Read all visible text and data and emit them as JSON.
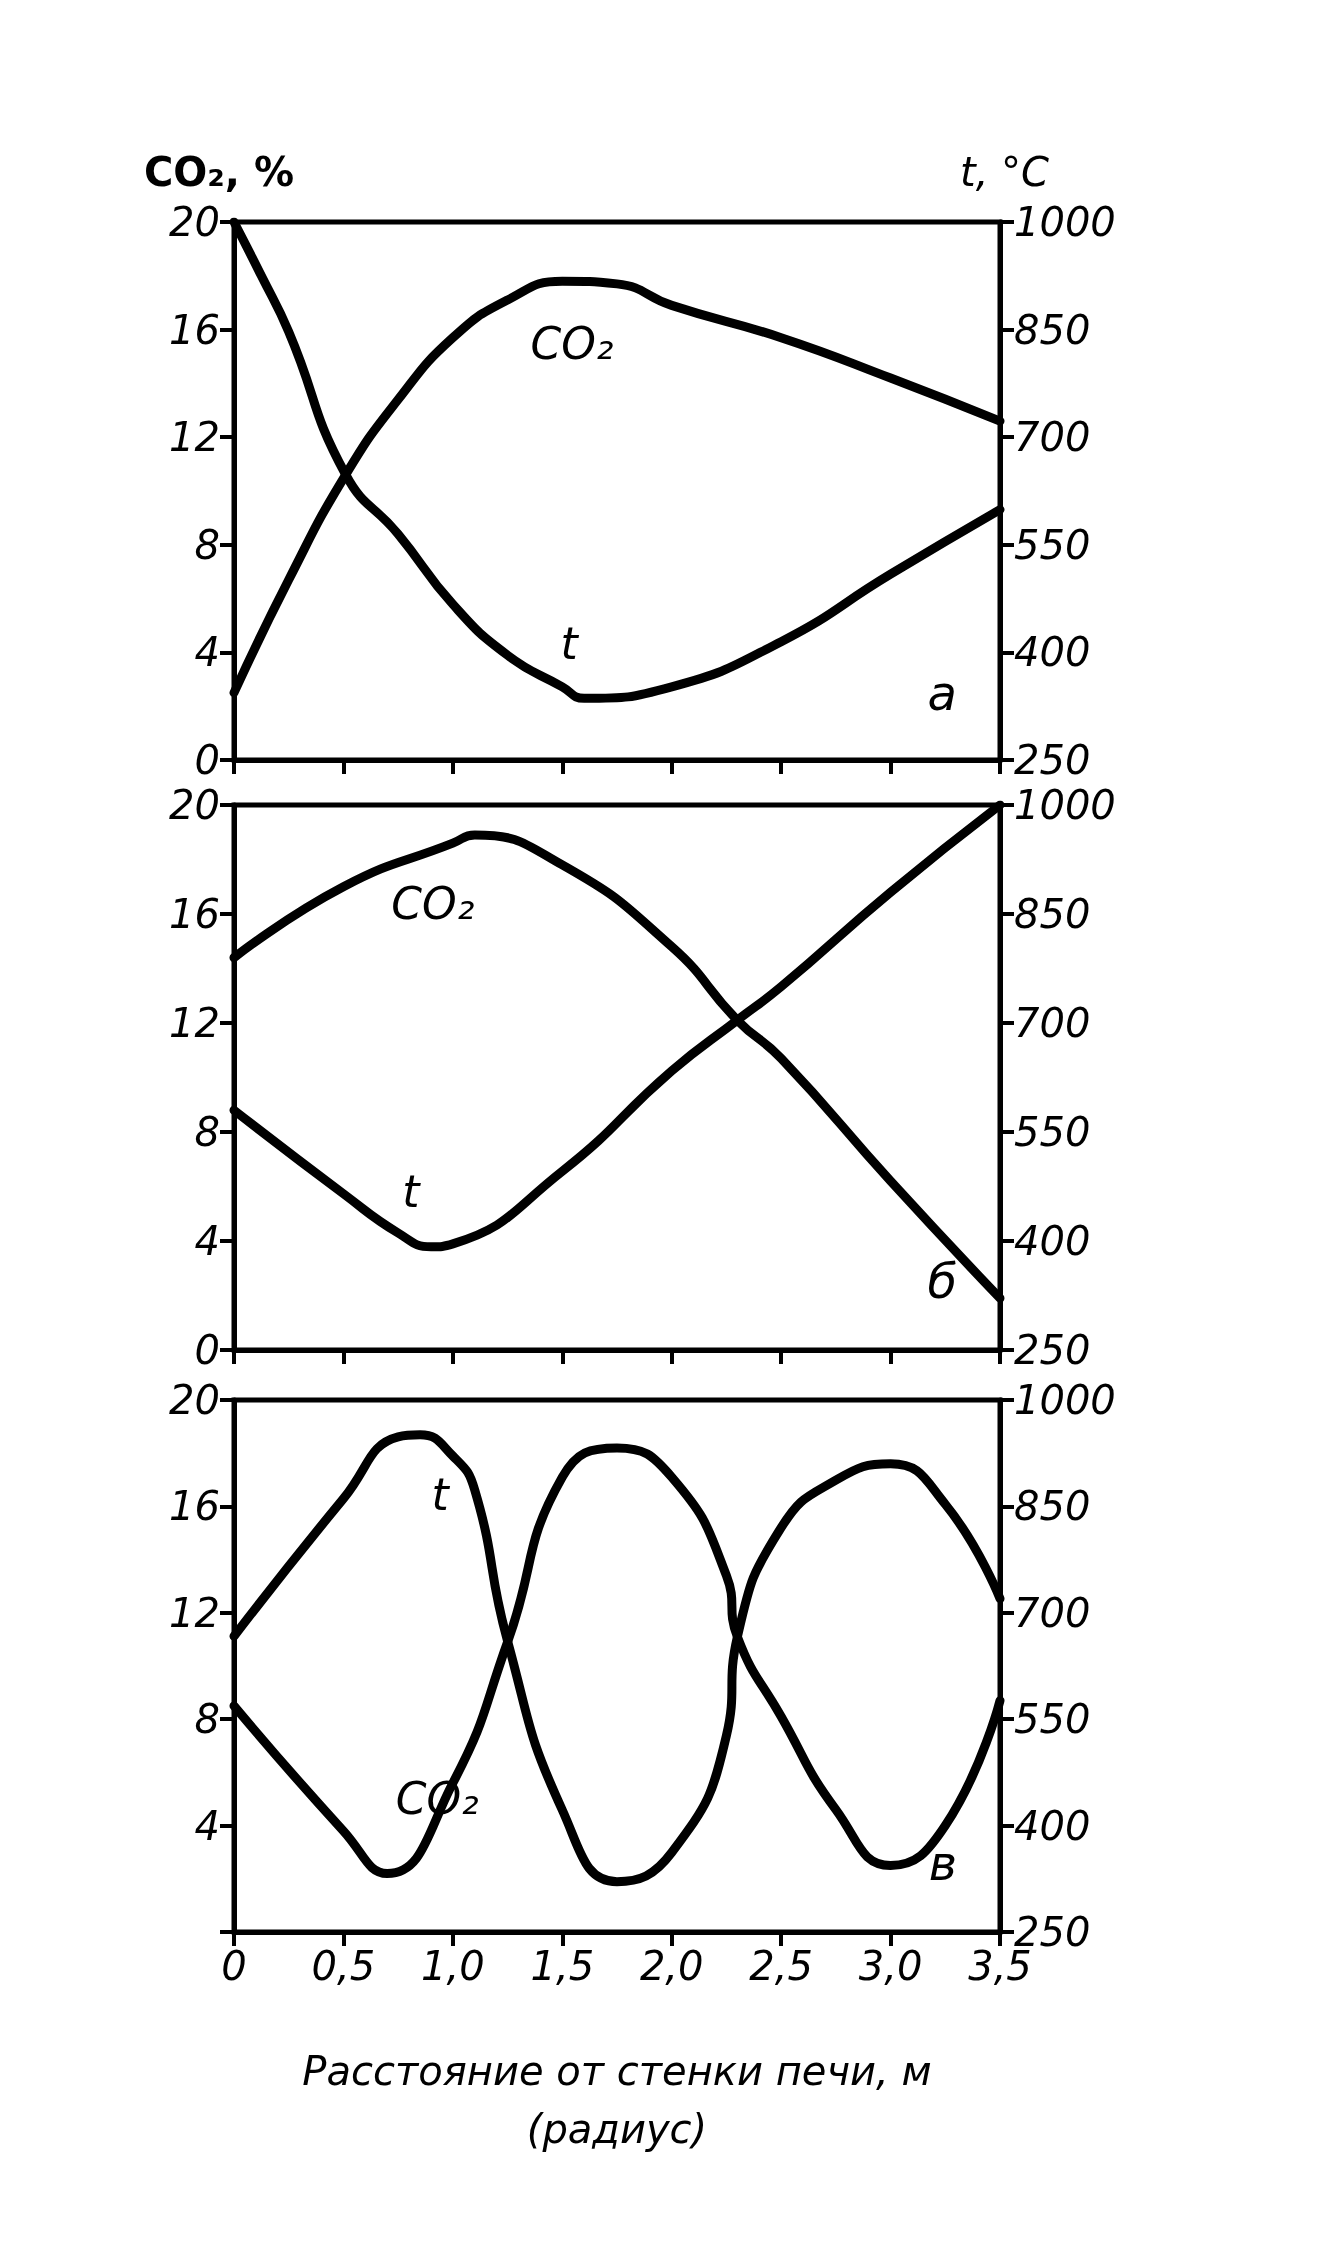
{
  "chart_data": [
    {
      "type": "line",
      "ylabel": "CO₂, %",
      "y2label": "t, °C",
      "xlim": [
        0,
        3.5
      ],
      "xticks": [
        0,
        0.5,
        1,
        1.5,
        2,
        2.5,
        3,
        3.5
      ],
      "ylim": [
        0,
        20
      ],
      "yticks": [
        0,
        4,
        8,
        12,
        16,
        20
      ],
      "y2lim": [
        250,
        1000
      ],
      "y2ticks": [
        250,
        400,
        550,
        700,
        850,
        1000
      ],
      "tick_labels": "y",
      "grid": false,
      "legend": false,
      "line_style": "solid",
      "annotations": [
        "а"
      ],
      "series": [
        {
          "name": "CO₂",
          "color": "#000000",
          "x": [
            0,
            0.25,
            0.51,
            0.75,
            1,
            1.25,
            1.5,
            1.75,
            2,
            2.5,
            3,
            3.5
          ],
          "values": [
            2.5,
            6.7,
            10.6,
            13.4,
            15.7,
            17.1,
            17.8,
            17.7,
            16.9,
            15.7,
            14.2,
            12.6
          ]
        },
        {
          "name": "t",
          "color": "#000000",
          "axis": "y2",
          "x": [
            0,
            0.125,
            0.25,
            0.51,
            0.75,
            1,
            1.25,
            1.5,
            1.6,
            2,
            2.5,
            3,
            3.5
          ],
          "values": [
            1000,
            925,
            847,
            648,
            565,
            467,
            396,
            352,
            336,
            352,
            415,
            509,
            599
          ]
        }
      ]
    },
    {
      "type": "line",
      "xlim": [
        0,
        3.5
      ],
      "xticks": [
        0,
        0.5,
        1,
        1.5,
        2,
        2.5,
        3,
        3.5
      ],
      "ylim": [
        0,
        20
      ],
      "yticks": [
        0,
        4,
        8,
        12,
        16,
        20
      ],
      "y2lim": [
        250,
        1000
      ],
      "y2ticks": [
        250,
        400,
        550,
        700,
        850,
        1000
      ],
      "tick_labels": "y",
      "grid": false,
      "legend": false,
      "line_style": "solid",
      "annotations": [
        "б"
      ],
      "series": [
        {
          "name": "CO₂",
          "color": "#000000",
          "x": [
            0,
            0.5,
            1,
            1.1,
            1.5,
            2,
            2.3,
            2.5,
            3,
            3.5
          ],
          "values": [
            14.4,
            17,
            18.6,
            18.9,
            17.8,
            14.8,
            12.1,
            10.7,
            6.2,
            1.9
          ]
        },
        {
          "name": "t",
          "color": "#000000",
          "axis": "y2",
          "x": [
            0,
            0.5,
            0.75,
            0.9,
            1,
            1.5,
            2,
            2.3,
            2.5,
            3,
            3.5
          ],
          "values": [
            580,
            465,
            411,
            392,
            396,
            496,
            634,
            704,
            750,
            880,
            1000
          ]
        }
      ]
    },
    {
      "type": "line",
      "xlabel": "Расстояние от стенки печи, м\n(радиус)",
      "xlim": [
        0,
        3.5
      ],
      "xticks": [
        0,
        {
          "value": 0.5,
          "label": "0,5"
        },
        {
          "value": 1,
          "label": "1,0"
        },
        {
          "value": 1.5,
          "label": "1,5"
        },
        {
          "value": 2,
          "label": "2,0"
        },
        {
          "value": 2.5,
          "label": "2,5"
        },
        {
          "value": 3,
          "label": "3,0"
        },
        {
          "value": 3.5,
          "label": "3,5"
        }
      ],
      "ylim": [
        0,
        20
      ],
      "yticks": [
        {
          "value": 0,
          "label": null
        },
        4,
        8,
        12,
        16,
        20
      ],
      "y2lim": [
        250,
        1000
      ],
      "y2ticks": [
        250,
        400,
        550,
        700,
        850,
        1000
      ],
      "grid": false,
      "legend": false,
      "line_style": "solid",
      "annotations": [
        "в"
      ],
      "series": [
        {
          "name": "CO₂",
          "color": "#000000",
          "x": [
            0,
            0.5,
            0.7,
            1,
            1.25,
            1.5,
            1.75,
            2,
            2.25,
            2.3,
            2.5,
            2.75,
            3,
            3.25,
            3.5
          ],
          "values": [
            8.5,
            3.8,
            2.2,
            5.6,
            10.9,
            17.1,
            18.2,
            17.1,
            13.4,
            11.1,
            8.1,
            4.6,
            2.5,
            4,
            8.7
          ]
        },
        {
          "name": "t",
          "color": "#000000",
          "axis": "y2",
          "x": [
            0,
            0.5,
            0.75,
            0.85,
            1,
            1.1,
            1.25,
            1.5,
            1.75,
            2,
            2.25,
            2.3,
            2.5,
            2.75,
            3,
            3.25,
            3.5
          ],
          "values": [
            667,
            861,
            948,
            951,
            921,
            873,
            660,
            422,
            321,
            362,
            527,
            666,
            820,
            887,
            910,
            853,
            720
          ]
        }
      ]
    }
  ]
}
